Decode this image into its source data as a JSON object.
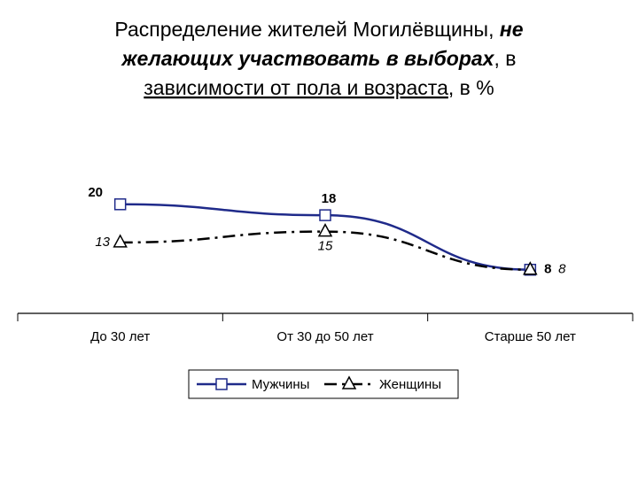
{
  "chart_data": {
    "type": "line",
    "title": [
      [
        {
          "text": "Распределение жителей Могилёвщины, ",
          "style": "normal"
        },
        {
          "text": "не",
          "style": "bold-italic"
        }
      ],
      [
        {
          "text": "желающих участвовать в выборах",
          "style": "bold-italic"
        },
        {
          "text": ", в",
          "style": "normal"
        }
      ],
      [
        {
          "text": "зависимости от пола и возраста",
          "style": "underline"
        },
        {
          "text": ", в %",
          "style": "normal"
        }
      ]
    ],
    "categories": [
      "До 30 лет",
      "От 30 до 50 лет",
      "Старше 50 лет"
    ],
    "series": [
      {
        "name": "Мужчины",
        "color": "#1f2a8a",
        "marker": "square",
        "dash": "solid",
        "values": [
          20,
          18,
          8
        ]
      },
      {
        "name": "Женщины",
        "color": "#000000",
        "marker": "triangle",
        "dash": "dash-dot",
        "values": [
          13,
          15,
          8
        ]
      }
    ],
    "ylim": [
      0,
      25
    ],
    "legend": "bottom"
  }
}
